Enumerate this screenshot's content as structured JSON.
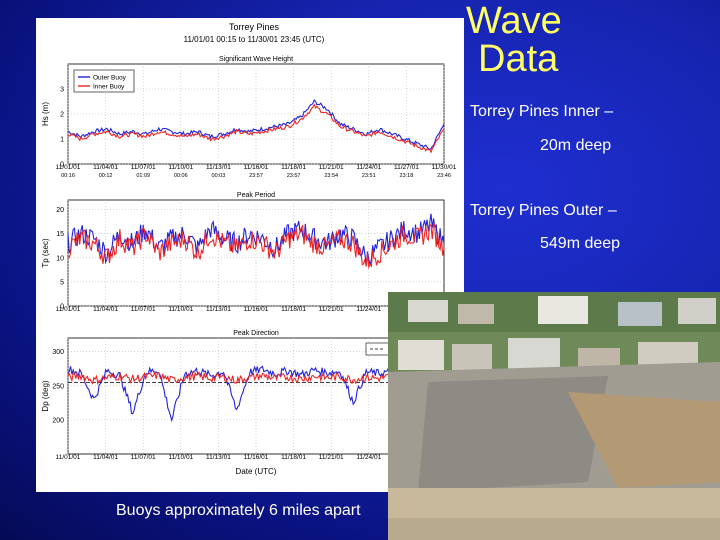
{
  "slide": {
    "title_line1": "Wave",
    "title_line2": "Data",
    "bullets": [
      "Torrey Pines Inner –",
      "20m deep",
      "Torrey Pines Outer –",
      "549m deep"
    ],
    "caption": "Buoys approximately 6 miles apart"
  },
  "colors": {
    "outer_buoy": "#2222dd",
    "inner_buoy": "#ee2222",
    "title_yellow": "#ffff66",
    "background": "#1624b0"
  },
  "icons": [
    "beach-cliff-photo"
  ],
  "chart_data": [
    {
      "type": "line",
      "title": "Torrey Pines",
      "subtitle": "11/01/01 00:15 to 11/30/01 23:45 (UTC)",
      "panel_title": "Significant Wave Height",
      "ylabel": "Hs (m)",
      "ylim": [
        0,
        4
      ],
      "yticks": [
        "0",
        "1",
        "2",
        "3"
      ],
      "xticks": [
        [
          "11/01/01",
          "00:16"
        ],
        [
          "11/04/01",
          "00:12"
        ],
        [
          "11/07/01",
          "01:09"
        ],
        [
          "11/10/01",
          "00:06"
        ],
        [
          "11/13/01",
          "00:03"
        ],
        [
          "11/16/01",
          "23:57"
        ],
        [
          "11/18/01",
          "23:57"
        ],
        [
          "11/21/01",
          "23:54"
        ],
        [
          "11/24/01",
          "23:51"
        ],
        [
          "11/27/01",
          "23:18"
        ],
        [
          "11/30/01",
          "23:46"
        ]
      ],
      "legend": "top-left",
      "series": [
        {
          "name": "Outer Buoy",
          "x": [
            1,
            2,
            3,
            4,
            5,
            6,
            7,
            8,
            9,
            10,
            11,
            12,
            13,
            14,
            15,
            16,
            17,
            18,
            19,
            20,
            21,
            22,
            23,
            24,
            25,
            26,
            27,
            28,
            29,
            30
          ],
          "values": [
            1.3,
            1.1,
            1.3,
            1.4,
            1.2,
            1.3,
            1.2,
            1.4,
            1.3,
            1.2,
            1.3,
            1.1,
            1.2,
            1.4,
            1.3,
            1.4,
            1.5,
            1.6,
            1.9,
            2.5,
            2.2,
            1.6,
            1.4,
            1.2,
            1.4,
            1.2,
            1.0,
            0.8,
            0.6,
            1.6
          ]
        },
        {
          "name": "Inner Buoy",
          "x": [
            1,
            2,
            3,
            4,
            5,
            6,
            7,
            8,
            9,
            10,
            11,
            12,
            13,
            14,
            15,
            16,
            17,
            18,
            19,
            20,
            21,
            22,
            23,
            24,
            25,
            26,
            27,
            28,
            29,
            30
          ],
          "values": [
            1.2,
            1.0,
            1.2,
            1.3,
            1.1,
            1.2,
            1.1,
            1.3,
            1.2,
            1.1,
            1.2,
            1.0,
            1.1,
            1.3,
            1.2,
            1.3,
            1.4,
            1.5,
            1.8,
            2.3,
            2.0,
            1.5,
            1.3,
            1.1,
            1.3,
            1.1,
            0.9,
            0.7,
            0.5,
            1.4
          ]
        }
      ]
    },
    {
      "type": "line",
      "panel_title": "Peak Period",
      "ylabel": "Tp (sec)",
      "ylim": [
        0,
        22
      ],
      "yticks": [
        "0",
        "5",
        "10",
        "15",
        "20"
      ],
      "xticks": [
        "11/01/01",
        "11/04/01",
        "11/07/01",
        "11/10/01",
        "11/13/01",
        "11/16/01",
        "11/18/01",
        "11/21/01",
        "11/24/01"
      ],
      "series": [
        {
          "name": "Outer Buoy",
          "x": [
            1,
            2,
            3,
            4,
            5,
            6,
            7,
            8,
            9,
            10,
            11,
            12,
            13,
            14,
            15,
            16,
            17,
            18,
            19,
            20,
            21,
            22,
            23,
            24,
            25,
            26,
            27,
            28,
            29,
            30
          ],
          "values": [
            13,
            15,
            14,
            11,
            15,
            13,
            16,
            12,
            14,
            15,
            12,
            16,
            14,
            13,
            15,
            14,
            12,
            15,
            16,
            14,
            13,
            15,
            14,
            10,
            12,
            14,
            16,
            15,
            17,
            13
          ]
        },
        {
          "name": "Inner Buoy",
          "x": [
            1,
            2,
            3,
            4,
            5,
            6,
            7,
            8,
            9,
            10,
            11,
            12,
            13,
            14,
            15,
            16,
            17,
            18,
            19,
            20,
            21,
            22,
            23,
            24,
            25,
            26,
            27,
            28,
            29,
            30
          ],
          "values": [
            12,
            14,
            13,
            10,
            14,
            12,
            15,
            11,
            13,
            14,
            11,
            15,
            13,
            12,
            14,
            13,
            11,
            14,
            15,
            13,
            12,
            14,
            13,
            9,
            11,
            13,
            15,
            14,
            16,
            12
          ]
        }
      ]
    },
    {
      "type": "line",
      "panel_title": "Peak Direction",
      "ylabel": "Dp (deg)",
      "xlabel": "Date (UTC)",
      "ylim": [
        150,
        320
      ],
      "yticks": [
        "200",
        "250",
        "300"
      ],
      "xticks": [
        "11/01/01",
        "11/04/01",
        "11/07/01",
        "11/10/01",
        "11/13/01",
        "11/16/01",
        "11/18/01",
        "11/21/01",
        "11/24/01"
      ],
      "legend": "top-right",
      "reference_line": {
        "name": "Shore Normal",
        "value": 255
      },
      "series": [
        {
          "name": "Outer Buoy",
          "x": [
            1,
            2,
            3,
            4,
            5,
            6,
            7,
            8,
            9,
            10,
            11,
            12,
            13,
            14,
            15,
            16,
            17,
            18,
            19,
            20,
            21,
            22,
            23,
            24,
            25,
            26,
            27,
            28,
            29,
            30
          ],
          "values": [
            275,
            268,
            230,
            272,
            265,
            210,
            270,
            273,
            200,
            268,
            272,
            265,
            271,
            214,
            270,
            274,
            268,
            272,
            266,
            273,
            269,
            271,
            226,
            270,
            268,
            272,
            266,
            270,
            271,
            268
          ]
        },
        {
          "name": "Inner Buoy",
          "x": [
            1,
            2,
            3,
            4,
            5,
            6,
            7,
            8,
            9,
            10,
            11,
            12,
            13,
            14,
            15,
            16,
            17,
            18,
            19,
            20,
            21,
            22,
            23,
            24,
            25,
            26,
            27,
            28,
            29,
            30
          ],
          "values": [
            262,
            265,
            258,
            262,
            264,
            260,
            263,
            265,
            258,
            262,
            264,
            261,
            263,
            258,
            262,
            265,
            261,
            263,
            260,
            264,
            262,
            263,
            259,
            262,
            261,
            264,
            260,
            262,
            263,
            261
          ]
        }
      ]
    }
  ]
}
